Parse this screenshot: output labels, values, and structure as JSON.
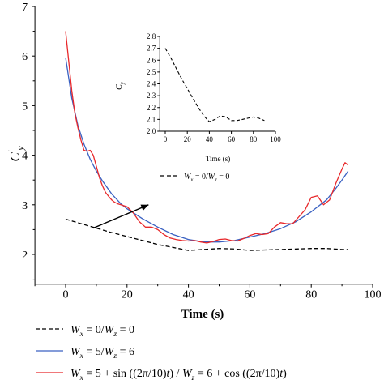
{
  "chart_data": [
    {
      "type": "line",
      "title": "",
      "xlabel": "Time (s)",
      "ylabel_main": "C",
      "ylabel_sub": "y",
      "ylabel_prime": "′",
      "xlim": [
        -10,
        100
      ],
      "ylim": [
        1.4,
        7
      ],
      "xticks": [
        0,
        20,
        40,
        60,
        80,
        100
      ],
      "xtick_labels": [
        "0",
        "20",
        "40",
        "60",
        "80",
        "100"
      ],
      "yticks": [
        2,
        3,
        4,
        5,
        6,
        7
      ],
      "ytick_labels": [
        "2",
        "3",
        "4",
        "5",
        "6",
        "7"
      ],
      "grid": false,
      "legend_position": "bottom",
      "series": [
        {
          "key": "dashed",
          "color": "#000000",
          "style": "dashed",
          "legend": {
            "p1": "W",
            "s1": "x",
            "p2": " = 0/",
            "p3": "W",
            "s2": "z",
            "p4": " = 0"
          },
          "x": [
            0,
            5,
            10,
            15,
            20,
            25,
            30,
            35,
            40,
            45,
            50,
            55,
            60,
            65,
            70,
            75,
            80,
            85,
            90,
            92
          ],
          "y": [
            2.71,
            2.62,
            2.53,
            2.44,
            2.36,
            2.28,
            2.2,
            2.14,
            2.08,
            2.1,
            2.12,
            2.11,
            2.08,
            2.09,
            2.1,
            2.11,
            2.12,
            2.12,
            2.1,
            2.1
          ]
        },
        {
          "key": "blue",
          "color": "#3a61c2",
          "style": "solid",
          "legend": {
            "p1": "W",
            "s1": "x",
            "p2": " = 5/",
            "p3": "W",
            "s2": "z",
            "p4": " = 6"
          },
          "x": [
            0,
            2,
            4,
            6,
            8,
            10,
            12,
            15,
            18,
            20,
            25,
            30,
            35,
            40,
            45,
            50,
            55,
            60,
            65,
            70,
            75,
            80,
            85,
            88,
            90,
            92
          ],
          "y": [
            5.97,
            5.15,
            4.6,
            4.22,
            3.92,
            3.68,
            3.48,
            3.22,
            3.02,
            2.92,
            2.72,
            2.55,
            2.4,
            2.3,
            2.25,
            2.25,
            2.28,
            2.35,
            2.42,
            2.52,
            2.66,
            2.86,
            3.1,
            3.33,
            3.5,
            3.68
          ]
        },
        {
          "key": "red",
          "color": "#e8282b",
          "style": "solid",
          "legend": {
            "p1": "W",
            "s1": "x",
            "p2": " = 5 + sin ((2π/10)",
            "p2b": "t",
            "p2c": ") / ",
            "p3": "W",
            "s2": "z",
            "p4": " = 6 + cos ((2π/10)",
            "p4b": "t",
            "p4c": ")"
          },
          "x": [
            0,
            1,
            2,
            3,
            4,
            5,
            6,
            7,
            8,
            9,
            10,
            11,
            12,
            13,
            14,
            15,
            16,
            17,
            18,
            19,
            20,
            22,
            24,
            26,
            28,
            30,
            32,
            34,
            36,
            38,
            40,
            42,
            44,
            46,
            48,
            50,
            52,
            54,
            56,
            58,
            60,
            62,
            64,
            66,
            68,
            70,
            72,
            74,
            76,
            78,
            80,
            82,
            84,
            86,
            88,
            90,
            91,
            92
          ],
          "y": [
            6.5,
            5.9,
            5.3,
            4.85,
            4.55,
            4.3,
            4.1,
            4.08,
            4.1,
            4.0,
            3.78,
            3.55,
            3.38,
            3.25,
            3.17,
            3.1,
            3.05,
            3.02,
            3.0,
            2.98,
            2.96,
            2.84,
            2.66,
            2.55,
            2.55,
            2.5,
            2.4,
            2.33,
            2.3,
            2.28,
            2.27,
            2.28,
            2.25,
            2.23,
            2.26,
            2.3,
            2.31,
            2.28,
            2.27,
            2.32,
            2.38,
            2.42,
            2.4,
            2.42,
            2.55,
            2.64,
            2.62,
            2.62,
            2.76,
            2.9,
            3.15,
            3.18,
            3.0,
            3.1,
            3.43,
            3.72,
            3.85,
            3.8
          ]
        }
      ],
      "annotation": {
        "arrow_from": [
          9,
          2.53
        ],
        "arrow_to": [
          27,
          3.0
        ],
        "legend_inline": {
          "p1": "W",
          "s1": "x",
          "p2": " = 0/",
          "p3": "W",
          "s2": "z",
          "p4": " = 0"
        }
      }
    },
    {
      "type": "line",
      "title": "",
      "xlabel": "Time (s)",
      "ylabel_main": "C",
      "ylabel_sub": "y",
      "xlim": [
        -5,
        100
      ],
      "ylim": [
        2.0,
        2.8
      ],
      "xticks": [
        0,
        20,
        40,
        60,
        80,
        100
      ],
      "xtick_labels": [
        "0",
        "20",
        "40",
        "60",
        "80",
        "100"
      ],
      "yticks": [
        2.0,
        2.1,
        2.2,
        2.3,
        2.4,
        2.5,
        2.6,
        2.7,
        2.8
      ],
      "ytick_labels": [
        "2.0",
        "2.1",
        "2.2",
        "2.3",
        "2.4",
        "2.5",
        "2.6",
        "2.7",
        "2.8"
      ],
      "grid": false,
      "series": [
        {
          "key": "inset-dashed",
          "color": "#000000",
          "style": "dashed",
          "x": [
            0,
            5,
            10,
            15,
            20,
            25,
            30,
            35,
            40,
            45,
            50,
            55,
            60,
            65,
            70,
            75,
            80,
            85,
            90
          ],
          "y": [
            2.7,
            2.62,
            2.53,
            2.44,
            2.36,
            2.28,
            2.2,
            2.13,
            2.08,
            2.1,
            2.13,
            2.12,
            2.09,
            2.09,
            2.1,
            2.11,
            2.12,
            2.11,
            2.09
          ]
        }
      ]
    }
  ]
}
